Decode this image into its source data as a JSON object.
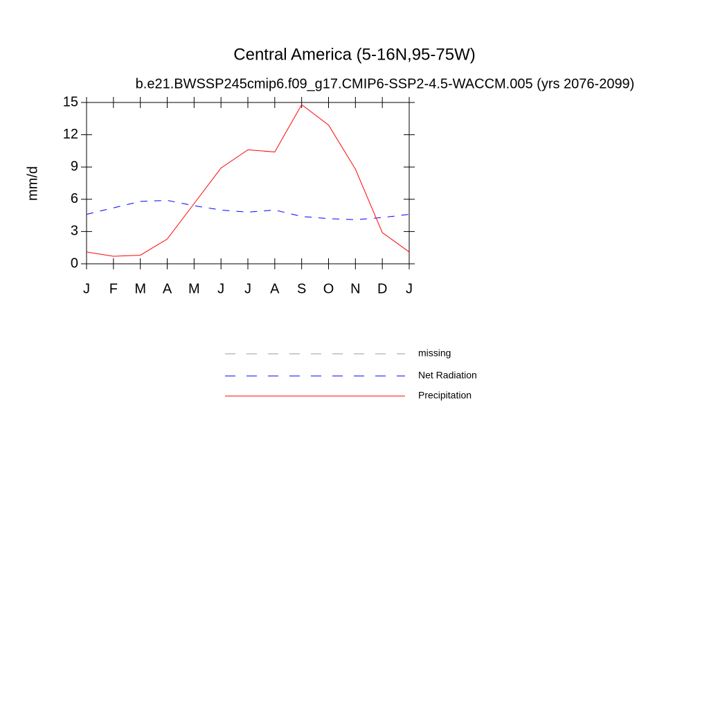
{
  "chart_data": {
    "type": "line",
    "title": "Central America (5-16N,95-75W)",
    "subtitle": "b.e21.BWSSP245cmip6.f09_g17.CMIP6-SSP2-4.5-WACCM.005 (yrs 2076-2099)",
    "y_label": "mm/d",
    "categories": [
      "J",
      "F",
      "M",
      "A",
      "M",
      "J",
      "J",
      "A",
      "S",
      "O",
      "N",
      "D",
      "J"
    ],
    "series": [
      {
        "name": "missing",
        "color": "#999999",
        "line_style": "dashed",
        "values": [
          null,
          null,
          null,
          null,
          null,
          null,
          null,
          null,
          null,
          null,
          null,
          null,
          null
        ]
      },
      {
        "name": "Net Radiation",
        "color": "#0000ff",
        "line_style": "dashed",
        "values": [
          4.6,
          5.2,
          5.8,
          5.9,
          5.4,
          5.0,
          4.8,
          5.0,
          4.4,
          4.2,
          4.1,
          4.3,
          4.6
        ]
      },
      {
        "name": "Precipitation",
        "color": "#ff0000",
        "line_style": "solid",
        "values": [
          1.1,
          0.7,
          0.8,
          2.3,
          5.6,
          8.9,
          10.6,
          10.4,
          14.8,
          12.9,
          8.8,
          2.9,
          1.1
        ]
      }
    ],
    "ylim": [
      0,
      15
    ],
    "yticks": [
      0,
      3,
      6,
      9,
      12,
      15
    ],
    "grid": false
  }
}
